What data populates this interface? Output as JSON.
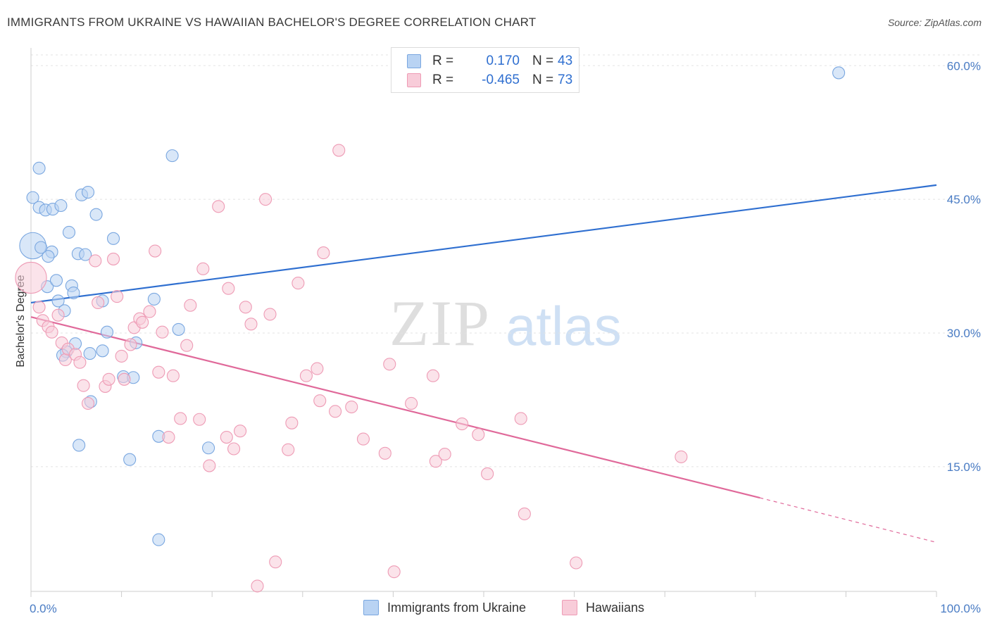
{
  "title": "IMMIGRANTS FROM UKRAINE VS HAWAIIAN BACHELOR'S DEGREE CORRELATION CHART",
  "source": "Source: ZipAtlas.com",
  "watermark": {
    "zip": "ZIP",
    "atlas": "atlas"
  },
  "legend": {
    "rows": [
      {
        "r_label": "R =",
        "r_value": "0.170",
        "n_label": "N =",
        "n_value": "43",
        "color": "#a8c8f0"
      },
      {
        "r_label": "R =",
        "r_value": "-0.465",
        "n_label": "N =",
        "n_value": "73",
        "color": "#f5b8cb"
      }
    ]
  },
  "bottom_legend": {
    "items": [
      {
        "label": "Immigrants from Ukraine",
        "color": "#a8c8f0"
      },
      {
        "label": "Hawaiians",
        "color": "#f5b8cb"
      }
    ]
  },
  "chart_data": {
    "type": "scatter",
    "title": "IMMIGRANTS FROM UKRAINE VS HAWAIIAN BACHELOR'S DEGREE CORRELATION CHART",
    "xlabel": "",
    "ylabel": "Bachelor's Degree",
    "xlim": [
      0,
      100
    ],
    "ylim": [
      1,
      62
    ],
    "x_tick_labels": [
      "0.0%",
      "100.0%"
    ],
    "y_ticks": [
      15,
      30,
      45,
      60
    ],
    "y_tick_labels": [
      "15.0%",
      "30.0%",
      "45.0%",
      "60.0%"
    ],
    "grid": true,
    "series": [
      {
        "name": "Immigrants from Ukraine",
        "color": "#7aa7e0",
        "fill": "#b9d3f3",
        "trend": {
          "x": [
            0,
            100
          ],
          "y": [
            33.4,
            46.6
          ],
          "color": "#2f6fd0"
        },
        "points": [
          [
            0.2,
            39.8,
            2.2
          ],
          [
            0.2,
            45.2,
            1
          ],
          [
            0.9,
            48.5,
            1
          ],
          [
            0.9,
            44.1,
            1
          ],
          [
            1.6,
            43.8,
            1
          ],
          [
            2.4,
            43.9,
            1
          ],
          [
            3.3,
            44.3,
            1
          ],
          [
            2.3,
            39.1,
            1
          ],
          [
            1.9,
            38.6,
            1
          ],
          [
            1.8,
            35.2,
            1
          ],
          [
            2.8,
            35.9,
            1
          ],
          [
            3.0,
            33.6,
            1
          ],
          [
            3.7,
            32.5,
            1
          ],
          [
            4.5,
            35.3,
            1
          ],
          [
            4.7,
            34.5,
            1
          ],
          [
            4.2,
            41.3,
            1
          ],
          [
            5.2,
            38.9,
            1
          ],
          [
            6.0,
            38.8,
            1
          ],
          [
            5.6,
            45.5,
            1
          ],
          [
            6.3,
            45.8,
            1
          ],
          [
            7.2,
            43.3,
            1
          ],
          [
            7.9,
            33.6,
            1
          ],
          [
            9.1,
            40.6,
            1
          ],
          [
            8.4,
            30.1,
            1
          ],
          [
            4.9,
            28.8,
            1
          ],
          [
            3.9,
            27.9,
            1
          ],
          [
            3.5,
            27.5,
            1
          ],
          [
            6.5,
            27.7,
            1
          ],
          [
            7.9,
            28.0,
            1
          ],
          [
            11.6,
            28.9,
            1
          ],
          [
            6.6,
            22.3,
            1
          ],
          [
            10.2,
            25.1,
            1
          ],
          [
            11.3,
            25.0,
            1
          ],
          [
            13.6,
            33.8,
            1
          ],
          [
            16.3,
            30.4,
            1
          ],
          [
            15.6,
            49.9,
            1
          ],
          [
            5.3,
            17.4,
            1
          ],
          [
            10.9,
            15.8,
            1
          ],
          [
            14.1,
            18.4,
            1
          ],
          [
            19.6,
            17.1,
            1
          ],
          [
            14.1,
            6.8,
            1
          ],
          [
            89.2,
            59.2,
            1
          ],
          [
            1.1,
            39.6,
            1
          ]
        ]
      },
      {
        "name": "Hawaiians",
        "color": "#ee9bb5",
        "fill": "#f8ccd9",
        "trend": {
          "x": [
            0,
            80.5
          ],
          "y": [
            31.8,
            11.5
          ],
          "color": "#e0699a",
          "dash_extension": {
            "x": [
              80.5,
              100
            ],
            "y": [
              11.5,
              6.5
            ]
          }
        },
        "points": [
          [
            0.0,
            36.2,
            2.6
          ],
          [
            0.9,
            32.9,
            1
          ],
          [
            1.3,
            31.4,
            1
          ],
          [
            1.9,
            30.7,
            1
          ],
          [
            2.3,
            30.1,
            1
          ],
          [
            3.0,
            32.0,
            1
          ],
          [
            3.4,
            28.9,
            1
          ],
          [
            3.8,
            27.0,
            1
          ],
          [
            4.1,
            28.2,
            1
          ],
          [
            4.9,
            27.6,
            1
          ],
          [
            5.4,
            26.7,
            1
          ],
          [
            5.8,
            24.1,
            1
          ],
          [
            6.3,
            22.1,
            1
          ],
          [
            7.1,
            38.1,
            1
          ],
          [
            7.4,
            33.4,
            1
          ],
          [
            8.2,
            24.0,
            1
          ],
          [
            8.6,
            24.8,
            1
          ],
          [
            9.1,
            38.3,
            1
          ],
          [
            9.5,
            34.1,
            1
          ],
          [
            10.0,
            27.4,
            1
          ],
          [
            10.3,
            24.8,
            1
          ],
          [
            11.0,
            28.7,
            1
          ],
          [
            11.4,
            30.6,
            1
          ],
          [
            12.0,
            31.6,
            1
          ],
          [
            12.3,
            31.2,
            1
          ],
          [
            13.1,
            32.4,
            1
          ],
          [
            13.7,
            39.2,
            1
          ],
          [
            14.1,
            25.6,
            1
          ],
          [
            14.5,
            30.1,
            1
          ],
          [
            15.2,
            18.3,
            1
          ],
          [
            15.7,
            25.2,
            1
          ],
          [
            16.5,
            20.4,
            1
          ],
          [
            17.2,
            28.6,
            1
          ],
          [
            17.6,
            33.1,
            1
          ],
          [
            18.6,
            20.3,
            1
          ],
          [
            19.0,
            37.2,
            1
          ],
          [
            19.7,
            15.1,
            1
          ],
          [
            20.7,
            44.2,
            1
          ],
          [
            21.6,
            18.3,
            1
          ],
          [
            21.8,
            35.0,
            1
          ],
          [
            22.4,
            17.0,
            1
          ],
          [
            23.1,
            19.0,
            1
          ],
          [
            23.7,
            32.9,
            1
          ],
          [
            24.3,
            31.0,
            1
          ],
          [
            25.0,
            1.6,
            1
          ],
          [
            25.9,
            45.0,
            1
          ],
          [
            26.4,
            32.1,
            1
          ],
          [
            28.4,
            16.9,
            1
          ],
          [
            27.0,
            4.3,
            1
          ],
          [
            28.8,
            19.9,
            1
          ],
          [
            29.5,
            35.6,
            1
          ],
          [
            30.4,
            25.2,
            1
          ],
          [
            31.6,
            26.0,
            1
          ],
          [
            31.9,
            22.4,
            1
          ],
          [
            32.3,
            39.0,
            1
          ],
          [
            33.6,
            21.2,
            1
          ],
          [
            34.0,
            50.5,
            1
          ],
          [
            35.4,
            21.7,
            1
          ],
          [
            36.7,
            18.1,
            1
          ],
          [
            39.1,
            16.5,
            1
          ],
          [
            39.6,
            26.5,
            1
          ],
          [
            40.1,
            3.2,
            1
          ],
          [
            42.0,
            22.1,
            1
          ],
          [
            44.4,
            25.2,
            1
          ],
          [
            44.7,
            15.6,
            1
          ],
          [
            45.7,
            16.4,
            1
          ],
          [
            47.6,
            19.8,
            1
          ],
          [
            49.4,
            18.6,
            1
          ],
          [
            50.4,
            14.2,
            1
          ],
          [
            54.1,
            20.4,
            1
          ],
          [
            54.5,
            9.7,
            1
          ],
          [
            60.2,
            4.2,
            1
          ],
          [
            71.8,
            16.1,
            1
          ]
        ]
      }
    ]
  }
}
